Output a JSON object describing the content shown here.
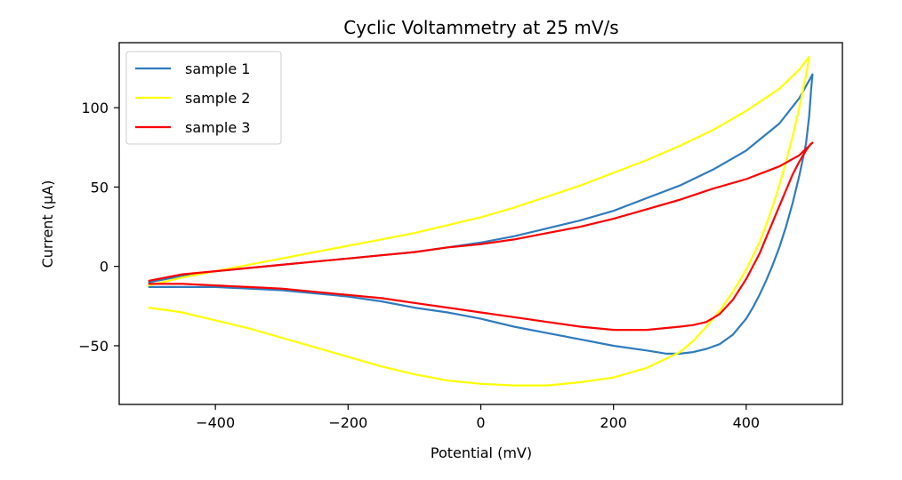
{
  "chart_data": {
    "type": "line",
    "title": "Cyclic Voltammetry at 25 mV/s",
    "xlabel": "Potential (mV)",
    "ylabel": "Current (µA)",
    "xlim": [
      -545,
      545
    ],
    "ylim": [
      -87,
      141
    ],
    "x_ticks": [
      -400,
      -200,
      0,
      200,
      400
    ],
    "x_tick_labels": [
      "−400",
      "−200",
      "0",
      "200",
      "400"
    ],
    "y_ticks": [
      -50,
      0,
      50,
      100
    ],
    "y_tick_labels": [
      "−50",
      "0",
      "50",
      "100"
    ],
    "grid": false,
    "legend_position": "top-left",
    "series": [
      {
        "name": "sample 1",
        "color": "#2f7bbd",
        "x": [
          -500,
          -450,
          -400,
          -350,
          -300,
          -250,
          -200,
          -150,
          -100,
          -50,
          0,
          50,
          100,
          150,
          200,
          250,
          300,
          350,
          400,
          450,
          480,
          500,
          498,
          495,
          490,
          480,
          470,
          460,
          450,
          440,
          430,
          420,
          410,
          400,
          380,
          360,
          340,
          320,
          300,
          280,
          250,
          200,
          150,
          100,
          50,
          0,
          -50,
          -100,
          -150,
          -200,
          -250,
          -300,
          -350,
          -400,
          -450,
          -500
        ],
        "y": [
          -10,
          -6,
          -3,
          -1,
          1,
          3,
          5,
          7,
          9,
          12,
          15,
          19,
          24,
          29,
          35,
          43,
          51,
          61,
          73,
          90,
          106,
          121,
          112,
          95,
          77,
          57,
          40,
          25,
          12,
          1,
          -9,
          -18,
          -26,
          -33,
          -43,
          -49,
          -52,
          -54,
          -55,
          -55,
          -53,
          -50,
          -46,
          -42,
          -38,
          -33,
          -29,
          -26,
          -22,
          -19,
          -17,
          -15,
          -14,
          -13,
          -13,
          -13
        ]
      },
      {
        "name": "sample 2",
        "color": "#ffff00",
        "x": [
          -500,
          -450,
          -400,
          -350,
          -300,
          -250,
          -200,
          -150,
          -100,
          -50,
          0,
          50,
          100,
          150,
          200,
          250,
          300,
          350,
          400,
          450,
          480,
          495,
          490,
          480,
          470,
          460,
          450,
          440,
          430,
          420,
          400,
          380,
          360,
          340,
          320,
          300,
          250,
          200,
          150,
          100,
          50,
          0,
          -50,
          -100,
          -150,
          -200,
          -250,
          -300,
          -350,
          -400,
          -450,
          -500
        ],
        "y": [
          -12,
          -7,
          -3,
          1,
          5,
          9,
          13,
          17,
          21,
          26,
          31,
          37,
          44,
          51,
          59,
          67,
          76,
          86,
          98,
          112,
          124,
          132,
          120,
          100,
          82,
          66,
          51,
          38,
          26,
          15,
          -2,
          -16,
          -28,
          -38,
          -47,
          -54,
          -64,
          -70,
          -73,
          -75,
          -75,
          -74,
          -72,
          -68,
          -63,
          -57,
          -51,
          -45,
          -39,
          -34,
          -29,
          -26
        ]
      },
      {
        "name": "sample 3",
        "color": "#ff0000",
        "x": [
          -500,
          -450,
          -400,
          -350,
          -300,
          -250,
          -200,
          -150,
          -100,
          -50,
          0,
          50,
          100,
          150,
          200,
          250,
          300,
          350,
          400,
          450,
          480,
          500,
          497,
          490,
          480,
          470,
          460,
          450,
          440,
          430,
          420,
          400,
          380,
          360,
          340,
          320,
          300,
          250,
          200,
          150,
          100,
          50,
          0,
          -50,
          -100,
          -150,
          -200,
          -250,
          -300,
          -350,
          -400,
          -450,
          -500
        ],
        "y": [
          -9,
          -5,
          -3,
          -1,
          1,
          3,
          5,
          7,
          9,
          12,
          14,
          17,
          21,
          25,
          30,
          36,
          42,
          49,
          55,
          63,
          70,
          78,
          77,
          73,
          66,
          58,
          48,
          38,
          28,
          18,
          8,
          -8,
          -21,
          -30,
          -35,
          -37,
          -38,
          -40,
          -40,
          -38,
          -35,
          -32,
          -29,
          -26,
          -23,
          -20,
          -18,
          -16,
          -14,
          -13,
          -12,
          -11,
          -11
        ]
      }
    ]
  }
}
